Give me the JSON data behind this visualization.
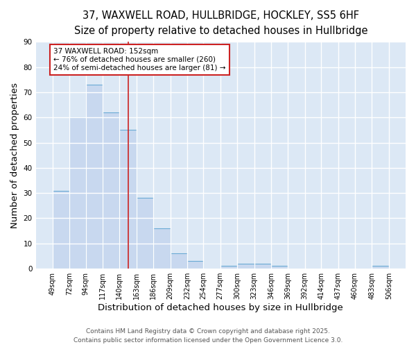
{
  "title_line1": "37, WAXWELL ROAD, HULLBRIDGE, HOCKLEY, SS5 6HF",
  "title_line2": "Size of property relative to detached houses in Hullbridge",
  "xlabel": "Distribution of detached houses by size in Hullbridge",
  "ylabel": "Number of detached properties",
  "bin_edges": [
    49,
    72,
    94,
    117,
    140,
    163,
    186,
    209,
    232,
    254,
    277,
    300,
    323,
    346,
    369,
    392,
    414,
    437,
    460,
    483,
    506
  ],
  "bar_heights": [
    31,
    60,
    73,
    62,
    55,
    28,
    16,
    6,
    3,
    0,
    1,
    2,
    2,
    1,
    0,
    0,
    0,
    0,
    0,
    1
  ],
  "bar_facecolor": "#c8d8ef",
  "bar_edgecolor": "#6aaad4",
  "fig_background_color": "#ffffff",
  "ax_background_color": "#dce8f5",
  "grid_color": "#ffffff",
  "property_size": 152,
  "red_line_color": "#cc2222",
  "annotation_text": "37 WAXWELL ROAD: 152sqm\n← 76% of detached houses are smaller (260)\n24% of semi-detached houses are larger (81) →",
  "annotation_box_edgecolor": "#cc2222",
  "annotation_box_facecolor": "#ffffff",
  "ylim": [
    0,
    90
  ],
  "yticks": [
    0,
    10,
    20,
    30,
    40,
    50,
    60,
    70,
    80,
    90
  ],
  "footer_line1": "Contains HM Land Registry data © Crown copyright and database right 2025.",
  "footer_line2": "Contains public sector information licensed under the Open Government Licence 3.0.",
  "tick_label_fontsize": 7.0,
  "axis_label_fontsize": 9.5,
  "title_fontsize1": 10.5,
  "title_fontsize2": 9.5,
  "footer_fontsize": 6.5
}
